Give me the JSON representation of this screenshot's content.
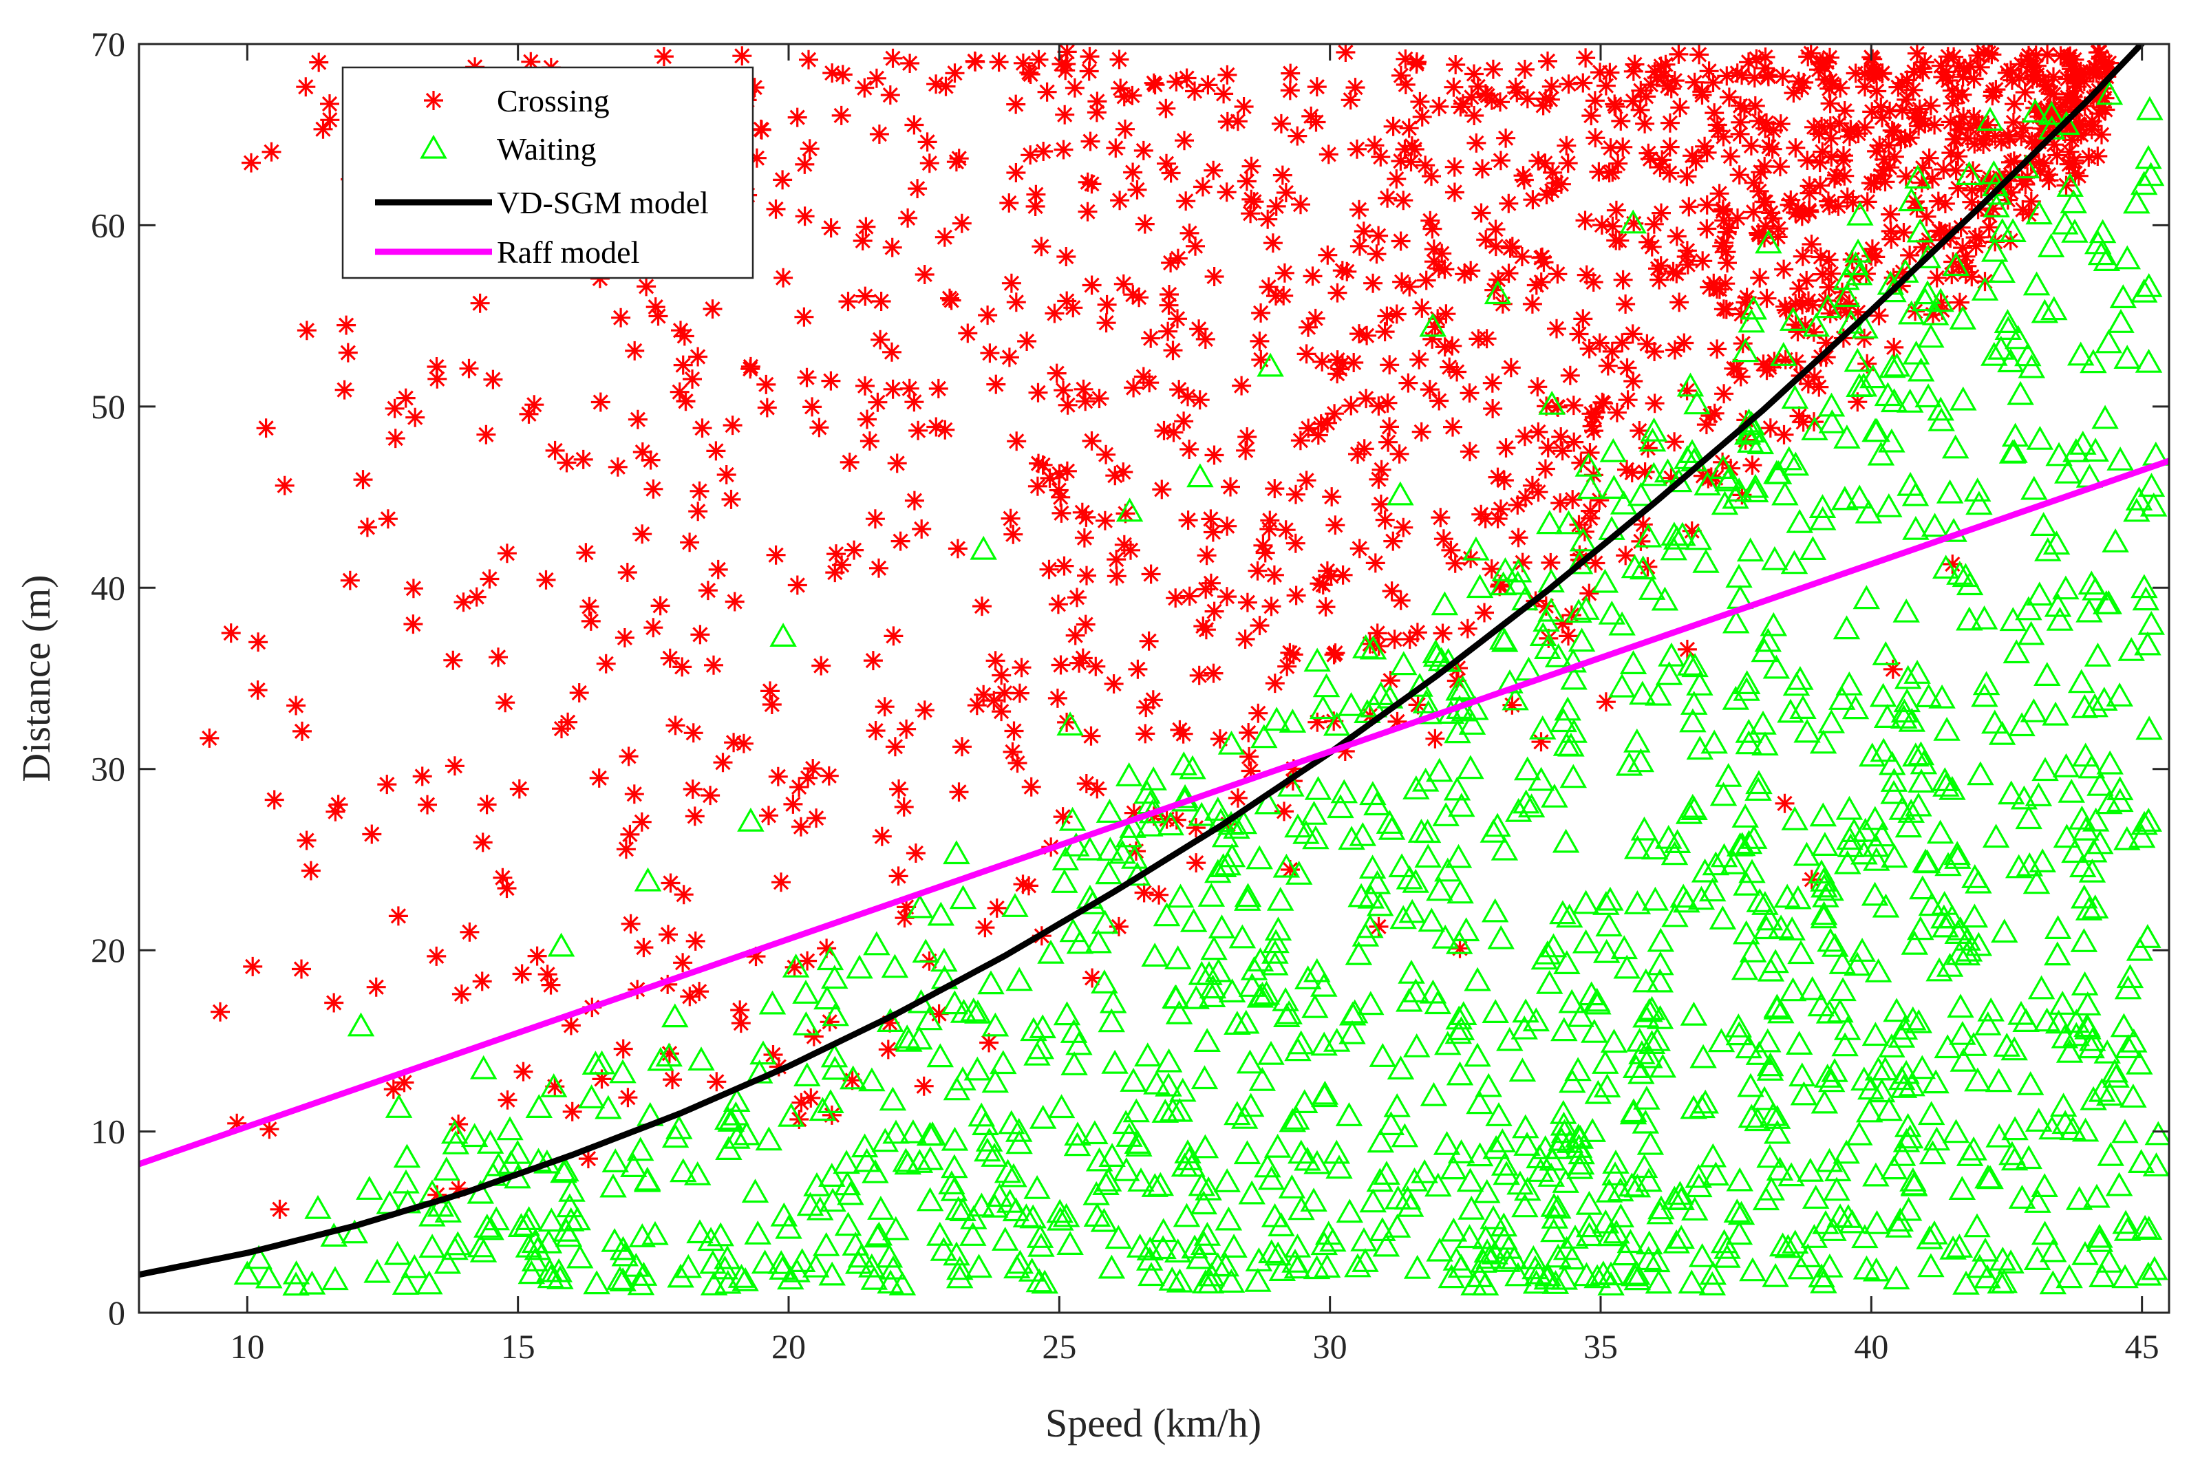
{
  "chart_data": {
    "type": "scatter",
    "xlabel": "Speed (km/h)",
    "ylabel": "Distance (m)",
    "xlim": [
      8,
      45.5
    ],
    "ylim": [
      0,
      70
    ],
    "xticks": [
      10,
      15,
      20,
      25,
      30,
      35,
      40,
      45
    ],
    "yticks": [
      0,
      10,
      20,
      30,
      40,
      50,
      60,
      70
    ],
    "xtick_labels": [
      "10",
      "15",
      "20",
      "25",
      "30",
      "35",
      "40",
      "45"
    ],
    "ytick_labels": [
      "0",
      "10",
      "20",
      "30",
      "40",
      "50",
      "60",
      "70"
    ],
    "grid": false,
    "legend_position": "top-left",
    "series": [
      {
        "name": "Crossing",
        "kind": "scatter",
        "marker": "asterisk",
        "color": "#ff0000",
        "approx_count": 1500,
        "approx_points": [
          [
            9.3,
            31.7
          ],
          [
            9.5,
            16.6
          ],
          [
            9.7,
            37.5
          ],
          [
            10.1,
            19.1
          ],
          [
            10.2,
            37.0
          ],
          [
            10.5,
            28.3
          ],
          [
            10.9,
            33.5
          ],
          [
            11.1,
            54.2
          ],
          [
            11.4,
            65.3
          ],
          [
            11.9,
            40.4
          ],
          [
            12.3,
            26.4
          ],
          [
            12.6,
            43.8
          ],
          [
            13.1,
            49.4
          ],
          [
            13.8,
            36.0
          ],
          [
            14.3,
            55.7
          ],
          [
            14.8,
            41.9
          ],
          [
            15.3,
            50.1
          ],
          [
            15.9,
            46.9
          ],
          [
            16.5,
            29.5
          ],
          [
            16.9,
            54.9
          ],
          [
            17.5,
            37.8
          ],
          [
            18.1,
            50.3
          ],
          [
            18.7,
            41.0
          ],
          [
            19.3,
            52.2
          ],
          [
            19.9,
            57.1
          ],
          [
            20.3,
            60.5
          ],
          [
            20.6,
            35.7
          ],
          [
            21.1,
            55.8
          ],
          [
            21.6,
            43.8
          ],
          [
            22.2,
            60.4
          ],
          [
            22.6,
            19.4
          ],
          [
            23.1,
            63.5
          ],
          [
            23.6,
            34.1
          ],
          [
            24.2,
            62.9
          ],
          [
            24.6,
            45.6
          ],
          [
            25.1,
            66.1
          ],
          [
            25.6,
            48.1
          ],
          [
            26.2,
            67.1
          ],
          [
            26.6,
            33.4
          ],
          [
            27.1,
            53.1
          ],
          [
            27.5,
            67.4
          ],
          [
            28.1,
            43.4
          ],
          [
            28.6,
            61.3
          ],
          [
            29.1,
            65.6
          ],
          [
            29.6,
            48.8
          ],
          [
            30.1,
            36.4
          ],
          [
            30.5,
            64.2
          ],
          [
            31.1,
            52.3
          ],
          [
            31.6,
            68.9
          ],
          [
            32.1,
            42.7
          ],
          [
            32.6,
            57.5
          ],
          [
            33.1,
            46.1
          ],
          [
            33.6,
            68.6
          ],
          [
            34.1,
            61.9
          ],
          [
            34.6,
            54.0
          ],
          [
            35.1,
            67.7
          ],
          [
            35.6,
            51.4
          ],
          [
            36.1,
            63.2
          ],
          [
            36.6,
            58.6
          ],
          [
            37.1,
            66.2
          ],
          [
            37.6,
            55.1
          ],
          [
            38.1,
            68.2
          ],
          [
            38.6,
            60.7
          ],
          [
            39.1,
            57.3
          ],
          [
            39.6,
            64.9
          ],
          [
            40.1,
            67.4
          ],
          [
            40.6,
            59.6
          ],
          [
            41.1,
            66.6
          ],
          [
            41.6,
            63.8
          ],
          [
            42.1,
            56.9
          ],
          [
            42.6,
            68.0
          ],
          [
            43.1,
            64.6
          ],
          [
            43.6,
            62.2
          ],
          [
            44.1,
            68.4
          ],
          [
            10.6,
            5.7
          ],
          [
            11.6,
            17.1
          ],
          [
            12.9,
            12.7
          ],
          [
            13.9,
            10.4
          ],
          [
            15.1,
            13.3
          ],
          [
            16.3,
            8.5
          ],
          [
            17.8,
            14.3
          ],
          [
            19.1,
            16.7
          ],
          [
            20.8,
            10.9
          ],
          [
            22.5,
            12.5
          ],
          [
            23.7,
            14.9
          ],
          [
            26.1,
            21.3
          ],
          [
            28.3,
            28.4
          ],
          [
            30.9,
            21.3
          ],
          [
            32.4,
            20.1
          ],
          [
            33.9,
            31.5
          ],
          [
            35.1,
            33.7
          ],
          [
            36.6,
            36.6
          ],
          [
            38.4,
            28.1
          ],
          [
            38.9,
            23.9
          ],
          [
            40.4,
            35.5
          ],
          [
            41.5,
            41.3
          ]
        ]
      },
      {
        "name": "Waiting",
        "kind": "scatter",
        "marker": "triangle",
        "color": "#00ff00",
        "approx_count": 1500,
        "approx_points": [
          [
            10.0,
            2.1
          ],
          [
            10.4,
            1.9
          ],
          [
            10.9,
            1.5
          ],
          [
            11.6,
            4.2
          ],
          [
            12.1,
            15.8
          ],
          [
            12.4,
            2.2
          ],
          [
            12.8,
            11.3
          ],
          [
            13.7,
            2.7
          ],
          [
            14.2,
            9.7
          ],
          [
            14.6,
            5.1
          ],
          [
            15.2,
            3.6
          ],
          [
            15.8,
            20.2
          ],
          [
            16.1,
            5.1
          ],
          [
            16.8,
            8.3
          ],
          [
            17.4,
            23.8
          ],
          [
            17.9,
            16.3
          ],
          [
            18.6,
            2.7
          ],
          [
            19.3,
            27.1
          ],
          [
            19.9,
            37.3
          ],
          [
            20.4,
            5.9
          ],
          [
            21.1,
            4.8
          ],
          [
            21.6,
            7.7
          ],
          [
            22.3,
            9.9
          ],
          [
            22.8,
            14.1
          ],
          [
            23.1,
            25.3
          ],
          [
            23.6,
            42.1
          ],
          [
            24.2,
            5.6
          ],
          [
            24.7,
            10.7
          ],
          [
            25.2,
            32.4
          ],
          [
            25.7,
            5.3
          ],
          [
            26.3,
            44.2
          ],
          [
            26.8,
            12.6
          ],
          [
            27.3,
            30.2
          ],
          [
            27.6,
            46.1
          ],
          [
            28.1,
            7.2
          ],
          [
            28.6,
            18.9
          ],
          [
            28.9,
            52.2
          ],
          [
            29.4,
            3.6
          ],
          [
            29.9,
            11.9
          ],
          [
            30.4,
            26.1
          ],
          [
            30.8,
            36.6
          ],
          [
            31.3,
            45.1
          ],
          [
            31.9,
            54.4
          ],
          [
            32.4,
            13.1
          ],
          [
            32.9,
            6.6
          ],
          [
            33.1,
            56.2
          ],
          [
            33.6,
            39.3
          ],
          [
            34.1,
            50.1
          ],
          [
            34.6,
            9.1
          ],
          [
            35.1,
            22.5
          ],
          [
            35.6,
            60.1
          ],
          [
            36.1,
            16.2
          ],
          [
            36.6,
            47.1
          ],
          [
            37.1,
            31.4
          ],
          [
            37.6,
            5.4
          ],
          [
            38.1,
            59.0
          ],
          [
            38.7,
            2.4
          ],
          [
            39.1,
            44.4
          ],
          [
            39.6,
            26.1
          ],
          [
            40.1,
            48.6
          ],
          [
            40.6,
            12.4
          ],
          [
            41.1,
            53.8
          ],
          [
            41.6,
            20.9
          ],
          [
            42.1,
            56.4
          ],
          [
            42.6,
            8.7
          ],
          [
            43.1,
            60.6
          ],
          [
            43.6,
            30.1
          ],
          [
            44.1,
            52.4
          ],
          [
            44.4,
            67.2
          ],
          [
            44.7,
            4.9
          ],
          [
            44.9,
            61.2
          ],
          [
            45.0,
            26.2
          ],
          [
            45.3,
            9.8
          ]
        ]
      },
      {
        "name": "VD-SGM model",
        "kind": "line",
        "color": "#000000",
        "x": [
          8,
          10,
          12,
          14,
          16,
          18,
          20,
          22,
          24,
          26,
          28,
          30,
          32,
          34,
          36,
          38,
          40,
          42,
          44,
          45.5
        ],
        "y": [
          2.1,
          3.3,
          4.8,
          6.6,
          8.7,
          11.0,
          13.6,
          16.5,
          19.7,
          23.2,
          26.9,
          30.9,
          35.2,
          39.8,
          44.7,
          49.8,
          55.3,
          61.0,
          66.9,
          71.6
        ]
      },
      {
        "name": "Raff model",
        "kind": "line",
        "color": "#ff00ff",
        "x": [
          8,
          45.5
        ],
        "y": [
          8.2,
          47.0
        ]
      }
    ],
    "legend": [
      "Crossing",
      "Waiting",
      "VD-SGM model",
      "Raff model"
    ]
  }
}
